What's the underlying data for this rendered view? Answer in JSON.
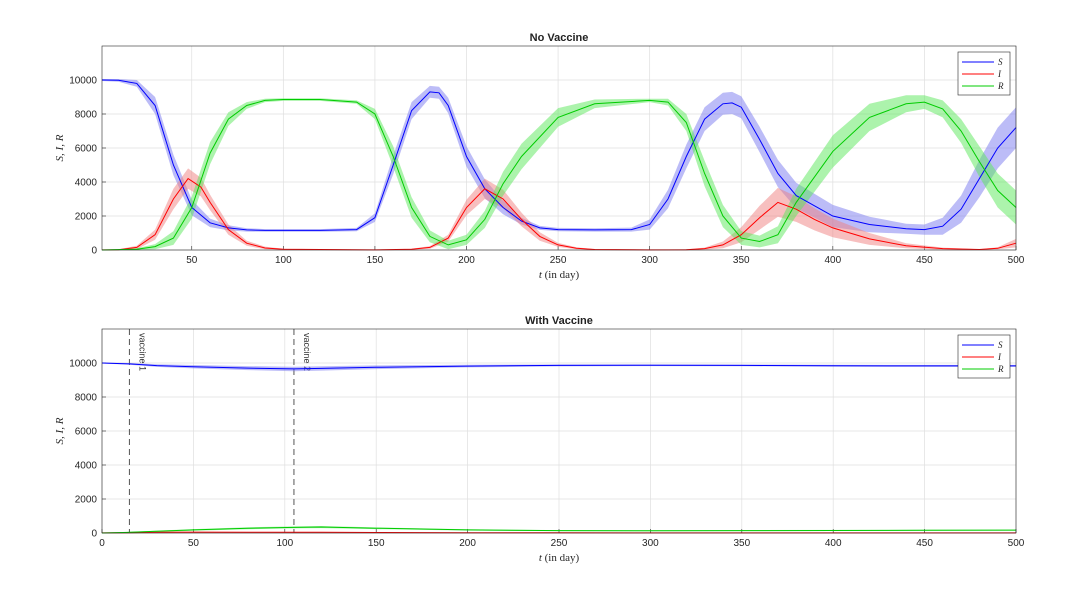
{
  "chart_data": [
    {
      "type": "line",
      "title": "No Vaccine",
      "xlabel_var": "t",
      "xlabel_unit": "(in day)",
      "ylabel": "S, I, R",
      "xlim": [
        1,
        500
      ],
      "ylim": [
        0,
        12000
      ],
      "xticks": [
        50,
        100,
        150,
        200,
        250,
        300,
        350,
        400,
        450,
        500
      ],
      "yticks": [
        0,
        2000,
        4000,
        6000,
        8000,
        10000
      ],
      "grid": true,
      "legend_position": "top-right",
      "series": [
        {
          "name": "S",
          "color": "#0000ff",
          "band_color": "#7a7af0",
          "x": [
            1,
            10,
            20,
            30,
            40,
            50,
            60,
            70,
            80,
            90,
            100,
            120,
            140,
            150,
            160,
            170,
            180,
            185,
            190,
            200,
            210,
            220,
            230,
            240,
            250,
            270,
            290,
            300,
            310,
            320,
            330,
            340,
            345,
            350,
            360,
            370,
            380,
            400,
            420,
            440,
            450,
            460,
            470,
            480,
            490,
            500
          ],
          "y": [
            10000,
            9980,
            9800,
            8500,
            5000,
            2500,
            1600,
            1300,
            1180,
            1150,
            1150,
            1150,
            1200,
            1900,
            5000,
            8200,
            9300,
            9250,
            8500,
            5500,
            3600,
            2500,
            1700,
            1300,
            1200,
            1180,
            1200,
            1500,
            3000,
            5500,
            7700,
            8600,
            8650,
            8400,
            6500,
            4500,
            3200,
            2000,
            1500,
            1250,
            1200,
            1400,
            2400,
            4200,
            6000,
            7200
          ],
          "band": [
            60,
            80,
            200,
            500,
            600,
            450,
            250,
            150,
            100,
            80,
            80,
            80,
            100,
            250,
            550,
            500,
            350,
            350,
            450,
            600,
            550,
            400,
            200,
            120,
            100,
            100,
            120,
            300,
            550,
            700,
            700,
            650,
            650,
            650,
            750,
            800,
            750,
            650,
            450,
            300,
            300,
            500,
            800,
            1100,
            1200,
            1200
          ]
        },
        {
          "name": "I",
          "color": "#ff0000",
          "band_color": "#f08080",
          "x": [
            1,
            10,
            20,
            30,
            40,
            48,
            55,
            60,
            70,
            80,
            90,
            100,
            150,
            170,
            180,
            190,
            200,
            210,
            220,
            230,
            240,
            250,
            260,
            270,
            300,
            320,
            330,
            340,
            350,
            360,
            370,
            380,
            390,
            400,
            420,
            440,
            460,
            480,
            490,
            500
          ],
          "y": [
            5,
            20,
            150,
            900,
            3000,
            4200,
            3700,
            2800,
            1200,
            400,
            120,
            40,
            5,
            40,
            150,
            700,
            2500,
            3600,
            3000,
            1800,
            800,
            300,
            100,
            30,
            5,
            20,
            80,
            300,
            900,
            1900,
            2800,
            2400,
            1800,
            1300,
            650,
            250,
            80,
            30,
            100,
            400
          ],
          "band": [
            5,
            20,
            100,
            300,
            600,
            600,
            550,
            450,
            300,
            150,
            80,
            30,
            5,
            30,
            80,
            200,
            450,
            600,
            550,
            400,
            250,
            120,
            60,
            20,
            5,
            20,
            60,
            200,
            450,
            700,
            850,
            750,
            650,
            550,
            350,
            150,
            60,
            20,
            60,
            250
          ]
        },
        {
          "name": "R",
          "color": "#00cc00",
          "band_color": "#5ae85a",
          "x": [
            1,
            20,
            30,
            40,
            50,
            60,
            70,
            80,
            90,
            100,
            120,
            140,
            150,
            160,
            170,
            180,
            190,
            200,
            210,
            220,
            230,
            250,
            270,
            300,
            310,
            320,
            330,
            340,
            350,
            360,
            370,
            380,
            400,
            420,
            440,
            450,
            460,
            470,
            480,
            490,
            500
          ],
          "y": [
            0,
            50,
            200,
            700,
            2500,
            5700,
            7700,
            8500,
            8800,
            8850,
            8850,
            8700,
            8000,
            5500,
            2500,
            800,
            300,
            600,
            1800,
            3900,
            5500,
            7800,
            8600,
            8800,
            8700,
            7500,
            4500,
            2000,
            700,
            500,
            900,
            2800,
            5800,
            7800,
            8600,
            8700,
            8300,
            7000,
            5200,
            3500,
            2500
          ],
          "band": [
            10,
            50,
            150,
            400,
            650,
            650,
            400,
            200,
            100,
            80,
            80,
            100,
            300,
            600,
            600,
            350,
            250,
            300,
            500,
            700,
            750,
            550,
            250,
            100,
            200,
            500,
            750,
            650,
            400,
            350,
            500,
            800,
            950,
            800,
            500,
            400,
            500,
            700,
            900,
            1000,
            1000
          ]
        }
      ]
    },
    {
      "type": "line",
      "title": "With Vaccine",
      "xlabel_var": "t",
      "xlabel_unit": "(in day)",
      "ylabel": "S, I, R",
      "xlim": [
        0,
        500
      ],
      "ylim": [
        0,
        12000
      ],
      "xticks": [
        0,
        50,
        100,
        150,
        200,
        250,
        300,
        350,
        400,
        450,
        500
      ],
      "yticks": [
        0,
        2000,
        4000,
        6000,
        8000,
        10000
      ],
      "grid": true,
      "legend_position": "top-right",
      "annotations": [
        {
          "label": "vaccine 1",
          "x": 15
        },
        {
          "label": "vaccine 2",
          "x": 105
        }
      ],
      "series": [
        {
          "name": "S",
          "color": "#0000ff",
          "band_color": "#7a7af0",
          "x": [
            0,
            15,
            30,
            50,
            80,
            105,
            120,
            150,
            200,
            250,
            300,
            350,
            400,
            450,
            500
          ],
          "y": [
            10000,
            9950,
            9850,
            9780,
            9700,
            9650,
            9680,
            9750,
            9820,
            9860,
            9870,
            9860,
            9840,
            9830,
            9830
          ],
          "band": [
            30,
            50,
            80,
            100,
            120,
            130,
            130,
            110,
            80,
            60,
            50,
            50,
            60,
            60,
            60
          ]
        },
        {
          "name": "I",
          "color": "#ff0000",
          "band_color": "#f08080",
          "x": [
            0,
            15,
            30,
            50,
            80,
            105,
            120,
            150,
            200,
            250,
            300,
            400,
            500
          ],
          "y": [
            5,
            20,
            40,
            50,
            45,
            40,
            40,
            30,
            15,
            10,
            5,
            5,
            5
          ],
          "band": [
            5,
            10,
            15,
            15,
            15,
            15,
            15,
            10,
            8,
            5,
            5,
            5,
            5
          ]
        },
        {
          "name": "R",
          "color": "#00cc00",
          "band_color": "#5ae85a",
          "x": [
            0,
            15,
            30,
            50,
            80,
            105,
            120,
            150,
            200,
            250,
            300,
            350,
            400,
            450,
            500
          ],
          "y": [
            0,
            40,
            100,
            180,
            280,
            330,
            350,
            280,
            180,
            140,
            130,
            140,
            150,
            160,
            170
          ],
          "band": [
            10,
            20,
            40,
            50,
            60,
            60,
            60,
            50,
            40,
            30,
            30,
            30,
            30,
            30,
            30
          ]
        }
      ]
    }
  ]
}
